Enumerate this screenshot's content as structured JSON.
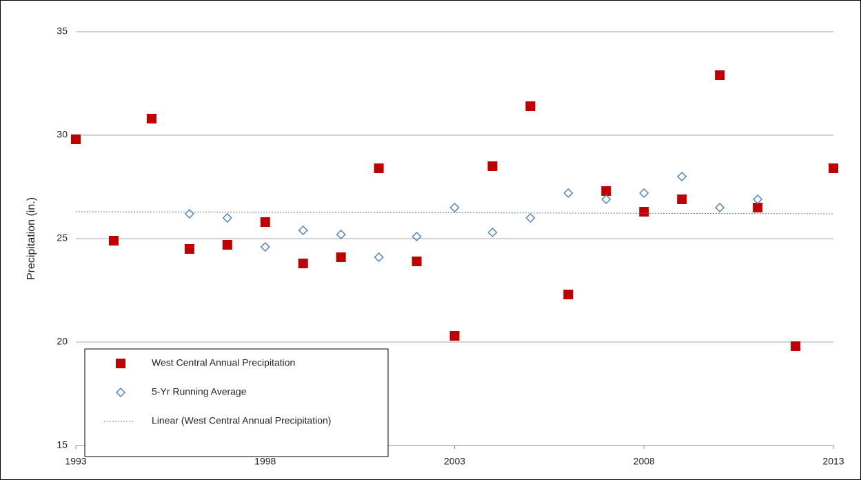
{
  "chart_data": {
    "type": "scatter",
    "ylabel": "Precipitation (in.)",
    "xlim": [
      1993,
      2013
    ],
    "xticks": [
      1993,
      1998,
      2003,
      2008,
      2013
    ],
    "ylim": [
      15,
      35
    ],
    "yticks": [
      15,
      20,
      25,
      30,
      35
    ],
    "grid": true,
    "legend": "lower left",
    "series": [
      {
        "name": "West Central Annual Precipitation",
        "color": "#c00000",
        "marker": "square",
        "x": [
          1993,
          1994,
          1995,
          1996,
          1997,
          1998,
          1999,
          2000,
          2001,
          2002,
          2003,
          2004,
          2005,
          2006,
          2007,
          2008,
          2009,
          2010,
          2011,
          2012,
          2013
        ],
        "values": [
          29.8,
          24.9,
          30.8,
          24.5,
          24.7,
          25.8,
          23.8,
          24.1,
          28.4,
          23.9,
          20.3,
          28.5,
          31.4,
          22.3,
          27.3,
          26.3,
          26.9,
          32.9,
          26.5,
          19.8,
          28.4
        ]
      },
      {
        "name": "5-Yr Running Average",
        "color": "#4f81bd",
        "marker": "diamond",
        "x": [
          1996,
          1997,
          1998,
          1999,
          2000,
          2001,
          2002,
          2003,
          2004,
          2005,
          2006,
          2007,
          2008,
          2009,
          2010,
          2011
        ],
        "values": [
          26.2,
          26.0,
          24.6,
          25.4,
          25.2,
          24.1,
          25.1,
          26.5,
          25.3,
          26.0,
          27.2,
          26.9,
          27.2,
          28.0,
          26.5,
          26.9
        ]
      },
      {
        "name": "Linear (West Central Annual Precipitation)",
        "color": "#4f81bd",
        "marker": "dotted-line",
        "x": [
          1993,
          2013
        ],
        "values": [
          26.3,
          26.2
        ]
      }
    ]
  }
}
